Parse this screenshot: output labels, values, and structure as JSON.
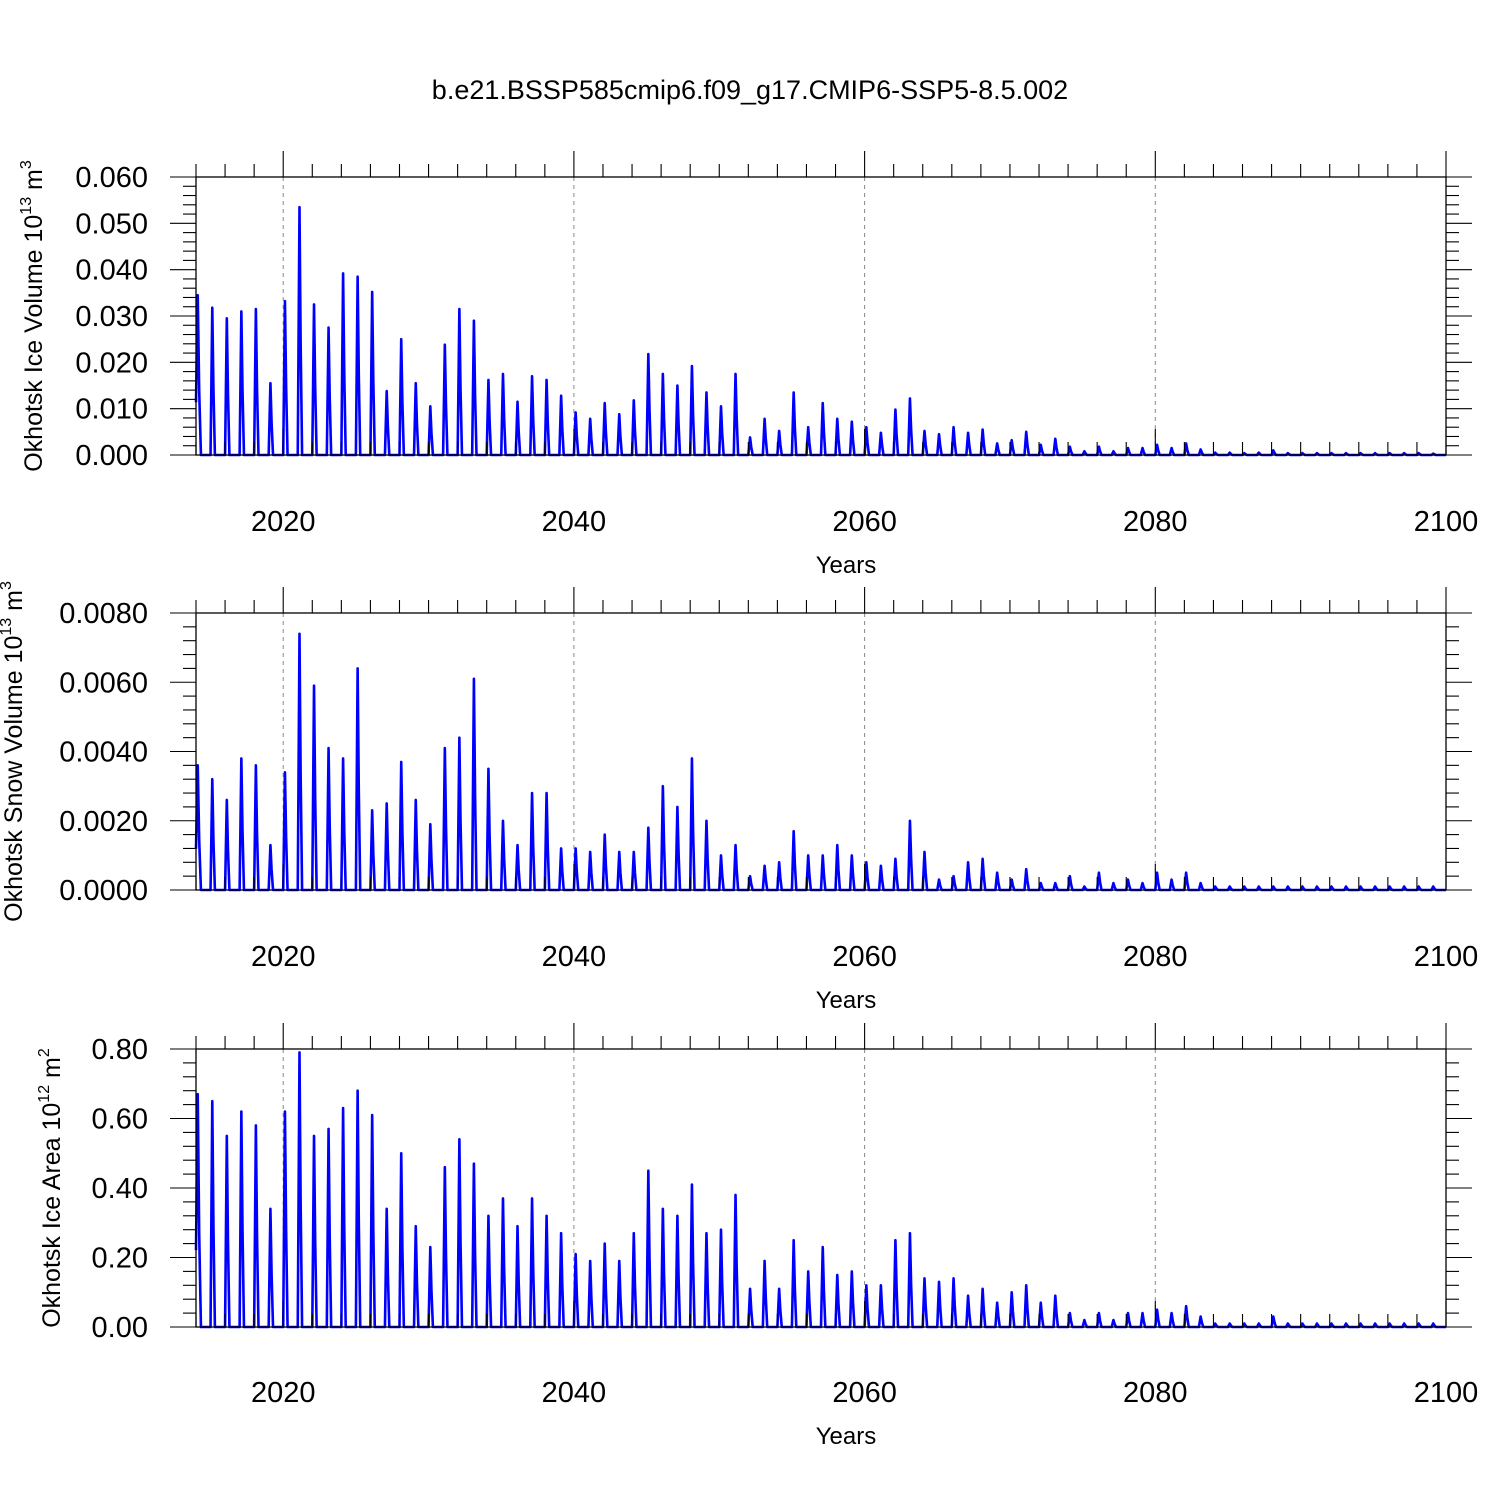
{
  "figure": {
    "title": "b.e21.BSSP585cmip6.f09_g17.CMIP6-SSP5-8.5.002",
    "line_color": "#0000ff"
  },
  "chart_data": [
    {
      "type": "line",
      "title": "",
      "ylabel": "Okhotsk Ice Volume 10^13 m^3",
      "ylabel_parts": {
        "base": "Okhotsk Ice Volume 10",
        "exp1": "13",
        "mid": " m",
        "exp2": "3"
      },
      "xlabel": "Years",
      "xlim": [
        2014,
        2100
      ],
      "ylim": [
        0,
        0.06
      ],
      "x_ticks": [
        2020,
        2040,
        2060,
        2080,
        2100
      ],
      "x_tick_labels": [
        "2020",
        "2040",
        "2060",
        "2080",
        "2100"
      ],
      "y_ticks": [
        0,
        0.01,
        0.02,
        0.03,
        0.04,
        0.05,
        0.06
      ],
      "y_tick_labels": [
        "0.000",
        "0.010",
        "0.020",
        "0.030",
        "0.040",
        "0.050",
        "0.060"
      ],
      "grid": "x-dashed",
      "series": [
        {
          "years": [
            2014,
            2015,
            2016,
            2017,
            2018,
            2019,
            2020,
            2021,
            2022,
            2023,
            2024,
            2025,
            2026,
            2027,
            2028,
            2029,
            2030,
            2031,
            2032,
            2033,
            2034,
            2035,
            2036,
            2037,
            2038,
            2039,
            2040,
            2041,
            2042,
            2043,
            2044,
            2045,
            2046,
            2047,
            2048,
            2049,
            2050,
            2051,
            2052,
            2053,
            2054,
            2055,
            2056,
            2057,
            2058,
            2059,
            2060,
            2061,
            2062,
            2063,
            2064,
            2065,
            2066,
            2067,
            2068,
            2069,
            2070,
            2071,
            2072,
            2073,
            2074,
            2075,
            2076,
            2077,
            2078,
            2079,
            2080,
            2081,
            2082,
            2083,
            2084,
            2085,
            2086,
            2087,
            2088,
            2089,
            2090,
            2091,
            2092,
            2093,
            2094,
            2095,
            2096,
            2097,
            2098,
            2099
          ],
          "annual_peaks": [
            0.0345,
            0.0318,
            0.0295,
            0.031,
            0.0315,
            0.0155,
            0.0332,
            0.0535,
            0.0325,
            0.0275,
            0.0392,
            0.0385,
            0.0352,
            0.0138,
            0.025,
            0.0155,
            0.0105,
            0.0238,
            0.0315,
            0.029,
            0.0162,
            0.0175,
            0.0115,
            0.017,
            0.0162,
            0.0128,
            0.0092,
            0.0078,
            0.0112,
            0.0088,
            0.0118,
            0.0218,
            0.0175,
            0.015,
            0.0192,
            0.0135,
            0.0105,
            0.0175,
            0.0038,
            0.0078,
            0.0052,
            0.0135,
            0.006,
            0.0112,
            0.0078,
            0.0072,
            0.006,
            0.0048,
            0.0098,
            0.0122,
            0.0052,
            0.0045,
            0.006,
            0.0048,
            0.0055,
            0.0025,
            0.0032,
            0.005,
            0.0022,
            0.0035,
            0.0018,
            0.0008,
            0.0018,
            0.0008,
            0.0015,
            0.0015,
            0.0022,
            0.0015,
            0.0025,
            0.0012,
            0.0005,
            0.0005,
            0.0004,
            0.0005,
            0.001,
            0.0004,
            0.0004,
            0.0004,
            0.0004,
            0.0004,
            0.0004,
            0.0004,
            0.0004,
            0.0004,
            0.0004,
            0.0003
          ]
        }
      ]
    },
    {
      "type": "line",
      "title": "",
      "ylabel": "Okhotsk Snow Volume 10^13 m^3",
      "ylabel_parts": {
        "base": "Okhotsk Snow Volume 10",
        "exp1": "13",
        "mid": " m",
        "exp2": "3"
      },
      "xlabel": "Years",
      "xlim": [
        2014,
        2100
      ],
      "ylim": [
        0,
        0.008
      ],
      "x_ticks": [
        2020,
        2040,
        2060,
        2080,
        2100
      ],
      "x_tick_labels": [
        "2020",
        "2040",
        "2060",
        "2080",
        "2100"
      ],
      "y_ticks": [
        0,
        0.002,
        0.004,
        0.006,
        0.008
      ],
      "y_tick_labels": [
        "0.0000",
        "0.0020",
        "0.0040",
        "0.0060",
        "0.0080"
      ],
      "grid": "x-dashed",
      "series": [
        {
          "years": [
            2014,
            2015,
            2016,
            2017,
            2018,
            2019,
            2020,
            2021,
            2022,
            2023,
            2024,
            2025,
            2026,
            2027,
            2028,
            2029,
            2030,
            2031,
            2032,
            2033,
            2034,
            2035,
            2036,
            2037,
            2038,
            2039,
            2040,
            2041,
            2042,
            2043,
            2044,
            2045,
            2046,
            2047,
            2048,
            2049,
            2050,
            2051,
            2052,
            2053,
            2054,
            2055,
            2056,
            2057,
            2058,
            2059,
            2060,
            2061,
            2062,
            2063,
            2064,
            2065,
            2066,
            2067,
            2068,
            2069,
            2070,
            2071,
            2072,
            2073,
            2074,
            2075,
            2076,
            2077,
            2078,
            2079,
            2080,
            2081,
            2082,
            2083,
            2084,
            2085,
            2086,
            2087,
            2088,
            2089,
            2090,
            2091,
            2092,
            2093,
            2094,
            2095,
            2096,
            2097,
            2098,
            2099
          ],
          "annual_peaks": [
            0.0036,
            0.0032,
            0.0026,
            0.0038,
            0.0036,
            0.0013,
            0.0034,
            0.0074,
            0.0059,
            0.0041,
            0.0038,
            0.0064,
            0.0023,
            0.0025,
            0.0037,
            0.0026,
            0.0019,
            0.0041,
            0.0044,
            0.0061,
            0.0035,
            0.002,
            0.0013,
            0.0028,
            0.0028,
            0.0012,
            0.0012,
            0.0011,
            0.0016,
            0.0011,
            0.0011,
            0.0018,
            0.003,
            0.0024,
            0.0038,
            0.002,
            0.001,
            0.0013,
            0.0004,
            0.0007,
            0.0008,
            0.0017,
            0.001,
            0.001,
            0.0013,
            0.001,
            0.0008,
            0.0007,
            0.0009,
            0.002,
            0.0011,
            0.0003,
            0.0004,
            0.0008,
            0.0009,
            0.0005,
            0.0003,
            0.0006,
            0.0002,
            0.0002,
            0.0004,
            0.0001,
            0.0005,
            0.0002,
            0.0003,
            0.0002,
            0.0005,
            0.0003,
            0.0005,
            0.0002,
            0.0001,
            0.0001,
            0.0001,
            0.0001,
            0.0001,
            0.0001,
            0.0001,
            0.0001,
            0.0001,
            0.0001,
            0.0001,
            0.0001,
            0.0001,
            0.0001,
            0.0001,
            0.0001
          ]
        }
      ]
    },
    {
      "type": "line",
      "title": "",
      "ylabel": "Okhotsk Ice Area 10^12 m^2",
      "ylabel_parts": {
        "base": "Okhotsk Ice Area 10",
        "exp1": "12",
        "mid": " m",
        "exp2": "2"
      },
      "xlabel": "Years",
      "xlim": [
        2014,
        2100
      ],
      "ylim": [
        0,
        0.8
      ],
      "x_ticks": [
        2020,
        2040,
        2060,
        2080,
        2100
      ],
      "x_tick_labels": [
        "2020",
        "2040",
        "2060",
        "2080",
        "2100"
      ],
      "y_ticks": [
        0,
        0.2,
        0.4,
        0.6,
        0.8
      ],
      "y_tick_labels": [
        "0.00",
        "0.20",
        "0.40",
        "0.60",
        "0.80"
      ],
      "grid": "x-dashed",
      "series": [
        {
          "years": [
            2014,
            2015,
            2016,
            2017,
            2018,
            2019,
            2020,
            2021,
            2022,
            2023,
            2024,
            2025,
            2026,
            2027,
            2028,
            2029,
            2030,
            2031,
            2032,
            2033,
            2034,
            2035,
            2036,
            2037,
            2038,
            2039,
            2040,
            2041,
            2042,
            2043,
            2044,
            2045,
            2046,
            2047,
            2048,
            2049,
            2050,
            2051,
            2052,
            2053,
            2054,
            2055,
            2056,
            2057,
            2058,
            2059,
            2060,
            2061,
            2062,
            2063,
            2064,
            2065,
            2066,
            2067,
            2068,
            2069,
            2070,
            2071,
            2072,
            2073,
            2074,
            2075,
            2076,
            2077,
            2078,
            2079,
            2080,
            2081,
            2082,
            2083,
            2084,
            2085,
            2086,
            2087,
            2088,
            2089,
            2090,
            2091,
            2092,
            2093,
            2094,
            2095,
            2096,
            2097,
            2098,
            2099
          ],
          "annual_peaks": [
            0.67,
            0.65,
            0.55,
            0.62,
            0.58,
            0.34,
            0.62,
            0.79,
            0.55,
            0.57,
            0.63,
            0.68,
            0.61,
            0.34,
            0.5,
            0.29,
            0.23,
            0.46,
            0.54,
            0.47,
            0.32,
            0.37,
            0.29,
            0.37,
            0.32,
            0.27,
            0.21,
            0.19,
            0.24,
            0.19,
            0.27,
            0.45,
            0.34,
            0.32,
            0.41,
            0.27,
            0.28,
            0.38,
            0.11,
            0.19,
            0.11,
            0.25,
            0.16,
            0.23,
            0.15,
            0.16,
            0.12,
            0.12,
            0.25,
            0.27,
            0.14,
            0.13,
            0.14,
            0.09,
            0.11,
            0.07,
            0.1,
            0.12,
            0.07,
            0.09,
            0.04,
            0.02,
            0.04,
            0.02,
            0.04,
            0.04,
            0.05,
            0.04,
            0.06,
            0.03,
            0.01,
            0.01,
            0.01,
            0.01,
            0.03,
            0.01,
            0.01,
            0.01,
            0.01,
            0.01,
            0.01,
            0.01,
            0.01,
            0.01,
            0.01,
            0.01
          ]
        }
      ]
    }
  ]
}
